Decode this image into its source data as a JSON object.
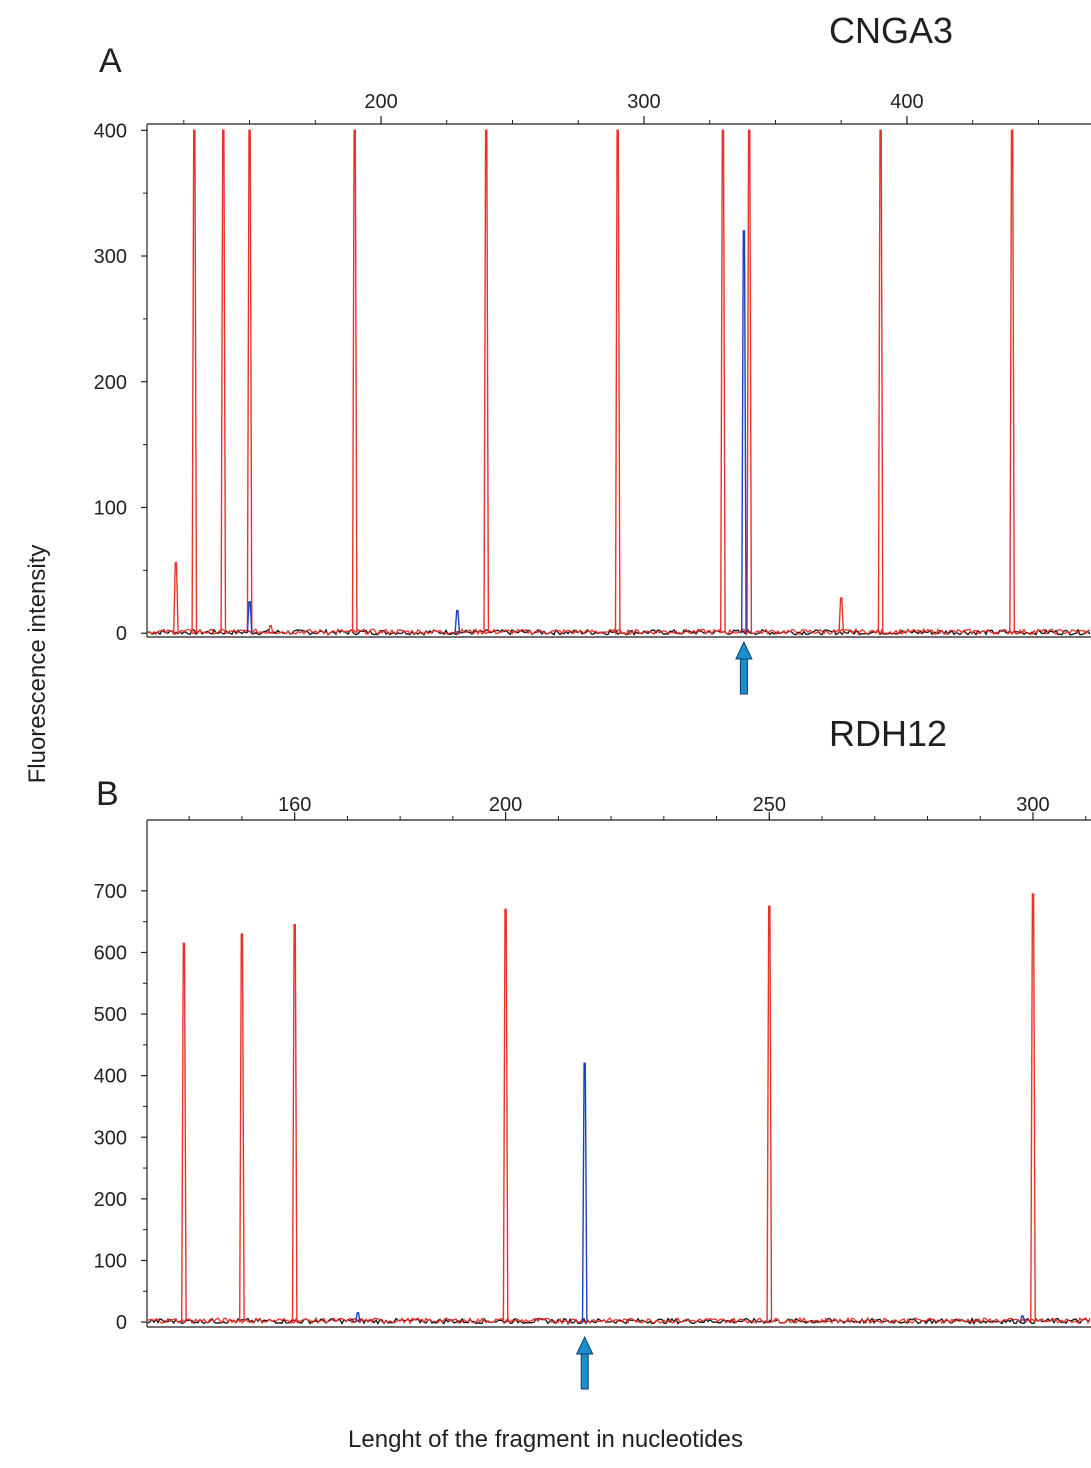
{
  "figure": {
    "ylabel": "Fluorescence intensity",
    "xlabel": "Lenght of the fragment in nucleotides",
    "colors": {
      "size_standard": "#e8322b",
      "sample": "#1f3fbf",
      "baseline": "#111111",
      "arrow": "#1a8fd0",
      "axis": "#231f20"
    }
  },
  "chart_data": [
    {
      "type": "line",
      "panel_label": "A",
      "title": "CNGA3",
      "x_ticks": [
        "200",
        "300",
        "400"
      ],
      "x_tick_values": [
        200,
        300,
        400
      ],
      "xlim": [
        111,
        470
      ],
      "y_ticks": [
        "400",
        "300",
        "200",
        "100",
        "0"
      ],
      "y_tick_values": [
        400,
        300,
        200,
        100,
        0
      ],
      "ylim": [
        -3,
        405
      ],
      "series": [
        {
          "color": "#e8322b",
          "peaks": [
            {
              "x": 122,
              "y": 56
            },
            {
              "x": 129,
              "y": 400
            },
            {
              "x": 140,
              "y": 400
            },
            {
              "x": 150,
              "y": 400
            },
            {
              "x": 158,
              "y": 6
            },
            {
              "x": 190,
              "y": 400
            },
            {
              "x": 240,
              "y": 400
            },
            {
              "x": 290,
              "y": 400
            },
            {
              "x": 330,
              "y": 400
            },
            {
              "x": 340,
              "y": 400
            },
            {
              "x": 375,
              "y": 28
            },
            {
              "x": 390,
              "y": 400
            },
            {
              "x": 440,
              "y": 400
            }
          ]
        },
        {
          "color": "#1f3fbf",
          "peaks": [
            {
              "x": 150,
              "y": 25
            },
            {
              "x": 229,
              "y": 18
            },
            {
              "x": 338,
              "y": 320
            }
          ]
        }
      ],
      "arrow_x": 338
    },
    {
      "type": "line",
      "panel_label": "B",
      "title": "RDH12",
      "x_ticks": [
        "160",
        "200",
        "250",
        "300"
      ],
      "x_tick_values": [
        160,
        200,
        250,
        300
      ],
      "xlim": [
        132,
        311
      ],
      "y_ticks": [
        "700",
        "600",
        "500",
        "400",
        "300",
        "200",
        "100",
        "0"
      ],
      "y_tick_values": [
        700,
        600,
        500,
        400,
        300,
        200,
        100,
        0
      ],
      "ylim": [
        -8,
        815
      ],
      "series": [
        {
          "color": "#e8322b",
          "peaks": [
            {
              "x": 139,
              "y": 615
            },
            {
              "x": 150,
              "y": 630
            },
            {
              "x": 160,
              "y": 645
            },
            {
              "x": 200,
              "y": 670
            },
            {
              "x": 250,
              "y": 675
            },
            {
              "x": 300,
              "y": 695
            }
          ]
        },
        {
          "color": "#1f3fbf",
          "peaks": [
            {
              "x": 172,
              "y": 15
            },
            {
              "x": 215,
              "y": 420
            },
            {
              "x": 298,
              "y": 10
            }
          ]
        }
      ],
      "arrow_x": 215
    }
  ]
}
